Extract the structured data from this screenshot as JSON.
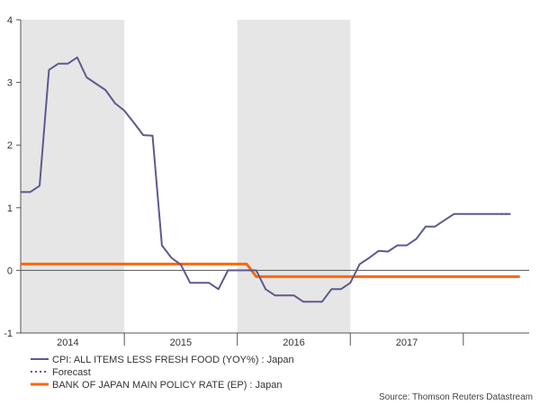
{
  "chart_data": {
    "type": "line",
    "title": "",
    "xlabel": "",
    "ylabel": "",
    "ylim": [
      -1,
      4
    ],
    "yticks": [
      "4",
      "3",
      "2",
      "1",
      "0",
      "-1"
    ],
    "x_start": 2013.583,
    "x_end": 2018.083,
    "year_labels": [
      "2014",
      "2015",
      "2016",
      "2017"
    ],
    "years": [
      2014,
      2015,
      2016,
      2017
    ],
    "shaded_years": [
      2014,
      2016
    ],
    "zero_line": true,
    "series": [
      {
        "name": "CPI: ALL ITEMS LESS FRESH FOOD (YOY%) : Japan",
        "color": "#5b5a8f",
        "style": "solid",
        "x": [
          2013.583,
          2013.667,
          2013.75,
          2013.833,
          2013.917,
          2014.0,
          2014.083,
          2014.167,
          2014.25,
          2014.333,
          2014.417,
          2014.5,
          2014.583,
          2014.667,
          2014.75,
          2014.833,
          2014.917,
          2015.0,
          2015.083,
          2015.167,
          2015.25,
          2015.333,
          2015.417,
          2015.5,
          2015.583,
          2015.667,
          2015.75,
          2015.833,
          2015.917,
          2016.0,
          2016.083,
          2016.167,
          2016.25,
          2016.333,
          2016.417,
          2016.5,
          2016.583,
          2016.667,
          2016.75,
          2016.833,
          2016.917,
          2017.0,
          2017.083,
          2017.167,
          2017.25,
          2017.333,
          2017.417,
          2017.5,
          2017.583,
          2017.667,
          2017.75,
          2017.833,
          2017.917
        ],
        "values": [
          1.25,
          1.25,
          1.35,
          3.2,
          3.3,
          3.3,
          3.4,
          3.08,
          2.98,
          2.88,
          2.67,
          2.55,
          2.36,
          2.16,
          2.15,
          0.4,
          0.2,
          0.09,
          -0.2,
          -0.2,
          -0.2,
          -0.3,
          0.0,
          0.0,
          0.0,
          0.0,
          -0.3,
          -0.4,
          -0.4,
          -0.4,
          -0.5,
          -0.5,
          -0.5,
          -0.3,
          -0.3,
          -0.2,
          0.1,
          0.2,
          0.31,
          0.3,
          0.4,
          0.4,
          0.5,
          0.7,
          0.7,
          0.8,
          0.9,
          0.9,
          0.9,
          0.9,
          0.9,
          0.9,
          0.9
        ]
      },
      {
        "name": "Forecast",
        "color": "#5b5a8f",
        "style": "dotted",
        "x": [
          2017.833,
          2017.917
        ],
        "values": [
          0.9,
          0.9
        ]
      },
      {
        "name": "BANK OF JAPAN MAIN POLICY RATE (EP) : Japan",
        "color": "#ff6600",
        "style": "solid",
        "x": [
          2013.583,
          2015.583,
          2015.667,
          2018.0
        ],
        "values": [
          0.1,
          0.1,
          -0.1,
          -0.1
        ]
      }
    ],
    "legend": [
      {
        "label": "CPI: ALL ITEMS LESS FRESH FOOD (YOY%) : Japan",
        "color": "#5b5a8f",
        "style": "solid"
      },
      {
        "label": "Forecast",
        "color": "#5b5a8f",
        "style": "dotted"
      },
      {
        "label": "BANK OF JAPAN MAIN POLICY RATE (EP) : Japan",
        "color": "#ff6600",
        "style": "solid"
      }
    ],
    "source": "Source: Thomson Reuters Datastream"
  }
}
